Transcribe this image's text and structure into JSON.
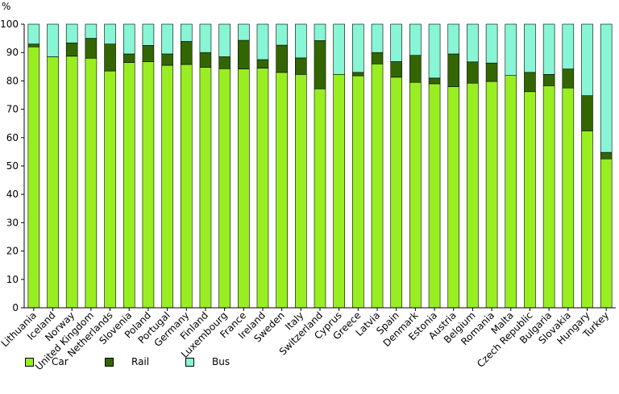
{
  "chart_data": {
    "type": "bar",
    "stacked": true,
    "ylabel": "%",
    "ylim": [
      0,
      100
    ],
    "yticks": [
      0,
      10,
      20,
      30,
      40,
      50,
      60,
      70,
      80,
      90,
      100
    ],
    "categories": [
      "Lithuania",
      "Iceland",
      "Norway",
      "United Kingdom",
      "Netherlands",
      "Slovenia",
      "Poland",
      "Portugal",
      "Germany",
      "Finland",
      "Luxembourg",
      "France",
      "Ireland",
      "Sweden",
      "Italy",
      "Switzerland",
      "Cyprus",
      "Greece",
      "Latvia",
      "Spain",
      "Denmark",
      "Estonia",
      "Austria",
      "Belgium",
      "Romania",
      "Malta",
      "Czech Republic",
      "Bulgaria",
      "Slovakia",
      "Hungary",
      "Turkey"
    ],
    "series": [
      {
        "name": "Car",
        "color": "#99ee22",
        "values": [
          92,
          88.5,
          88.7,
          88,
          83.5,
          86.5,
          86.8,
          85.5,
          85.8,
          84.8,
          84.3,
          84.2,
          84.5,
          83,
          82.3,
          77.2,
          82.3,
          81.8,
          86,
          81.3,
          79.5,
          79,
          78,
          79.2,
          79.8,
          81.9,
          76.2,
          78.3,
          77.5,
          62.4,
          52.5
        ]
      },
      {
        "name": "Rail",
        "color": "#336600",
        "values": [
          1,
          0,
          4.7,
          7,
          9.5,
          3,
          5.7,
          4,
          8.1,
          5.2,
          4.2,
          10.1,
          3,
          9.6,
          5.8,
          17,
          0,
          1.2,
          4,
          5.5,
          9.5,
          2,
          11.5,
          7.5,
          6.5,
          0,
          6.8,
          4,
          6.7,
          12.4,
          2.3
        ]
      },
      {
        "name": "Bus",
        "color": "#88f5d5",
        "values": [
          7,
          11.5,
          6.6,
          5,
          7,
          10.5,
          7.5,
          10.5,
          6.1,
          10,
          11.5,
          5.7,
          12.5,
          7.4,
          11.9,
          5.8,
          17.7,
          17,
          10,
          13.2,
          11,
          19,
          10.5,
          13.3,
          13.7,
          18.1,
          17,
          17.7,
          15.8,
          25.2,
          45.2
        ]
      }
    ],
    "legend": [
      {
        "label": "Car",
        "color": "#99ee22"
      },
      {
        "label": "Rail",
        "color": "#336600"
      },
      {
        "label": "Bus",
        "color": "#88f5d5"
      }
    ],
    "legend_position": "bottom-left",
    "grid": false
  }
}
